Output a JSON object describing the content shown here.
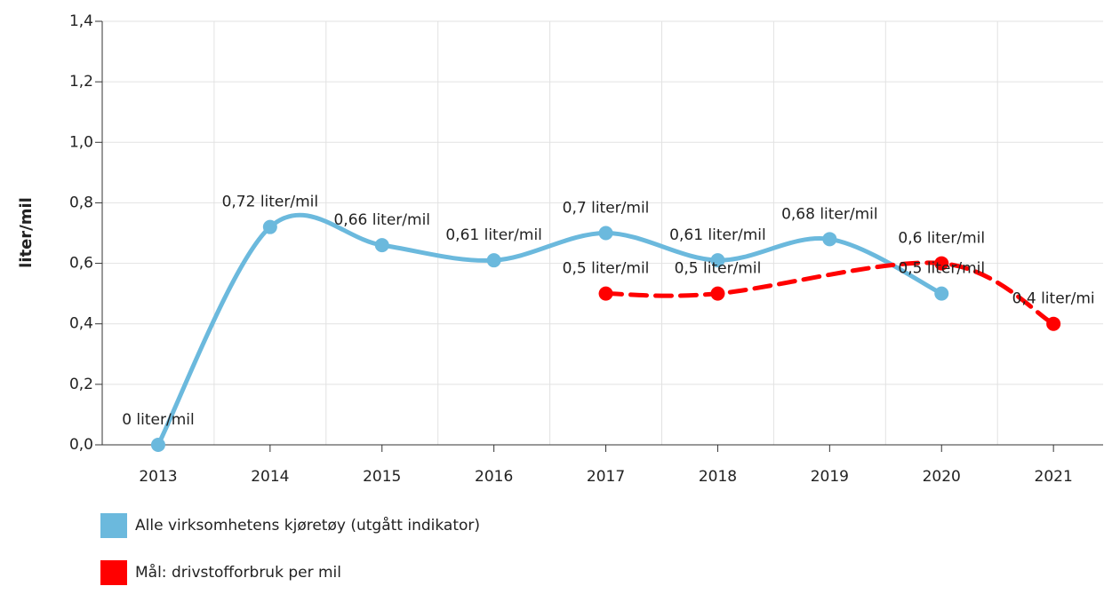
{
  "chart_data": {
    "type": "line",
    "y_axis_label": "liter/mil",
    "categories": [
      "2013",
      "2014",
      "2015",
      "2016",
      "2017",
      "2018",
      "2019",
      "2020",
      "2021"
    ],
    "series": [
      {
        "name": "Alle virksomhetens kjøretøy (utgått indikator)",
        "color": "#6bb9dd",
        "dashed": false,
        "values": [
          0,
          0.72,
          0.66,
          0.61,
          0.7,
          0.61,
          0.68,
          0.5,
          null
        ],
        "value_labels": [
          "0 liter/mil",
          "0,72 liter/mil",
          "0,66 liter/mil",
          "0,61 liter/mil",
          "0,7 liter/mil",
          "0,61 liter/mil",
          "0,68 liter/mil",
          "0,5 liter/mil",
          null
        ]
      },
      {
        "name": "Mål: drivstofforbruk per mil",
        "color": "#ff0000",
        "dashed": true,
        "values": [
          null,
          null,
          null,
          null,
          0.5,
          0.5,
          null,
          0.6,
          0.4
        ],
        "value_labels": [
          null,
          null,
          null,
          null,
          "0,5 liter/mil",
          "0,5 liter/mil",
          null,
          "0,6 liter/mil",
          "0,4 liter/mi"
        ]
      }
    ],
    "connect_nulls": true,
    "ylim": [
      0,
      1.4
    ],
    "yticks": [
      {
        "value": 0,
        "label": "0,0"
      },
      {
        "value": 0.2,
        "label": "0,2"
      },
      {
        "value": 0.4,
        "label": "0,4"
      },
      {
        "value": 0.6,
        "label": "0,6"
      },
      {
        "value": 0.8,
        "label": "0,8"
      },
      {
        "value": 1.0,
        "label": "1,0"
      },
      {
        "value": 1.2,
        "label": "1,2"
      },
      {
        "value": 1.4,
        "label": "1,4"
      }
    ],
    "grid": true,
    "legend": "bottom-left"
  }
}
